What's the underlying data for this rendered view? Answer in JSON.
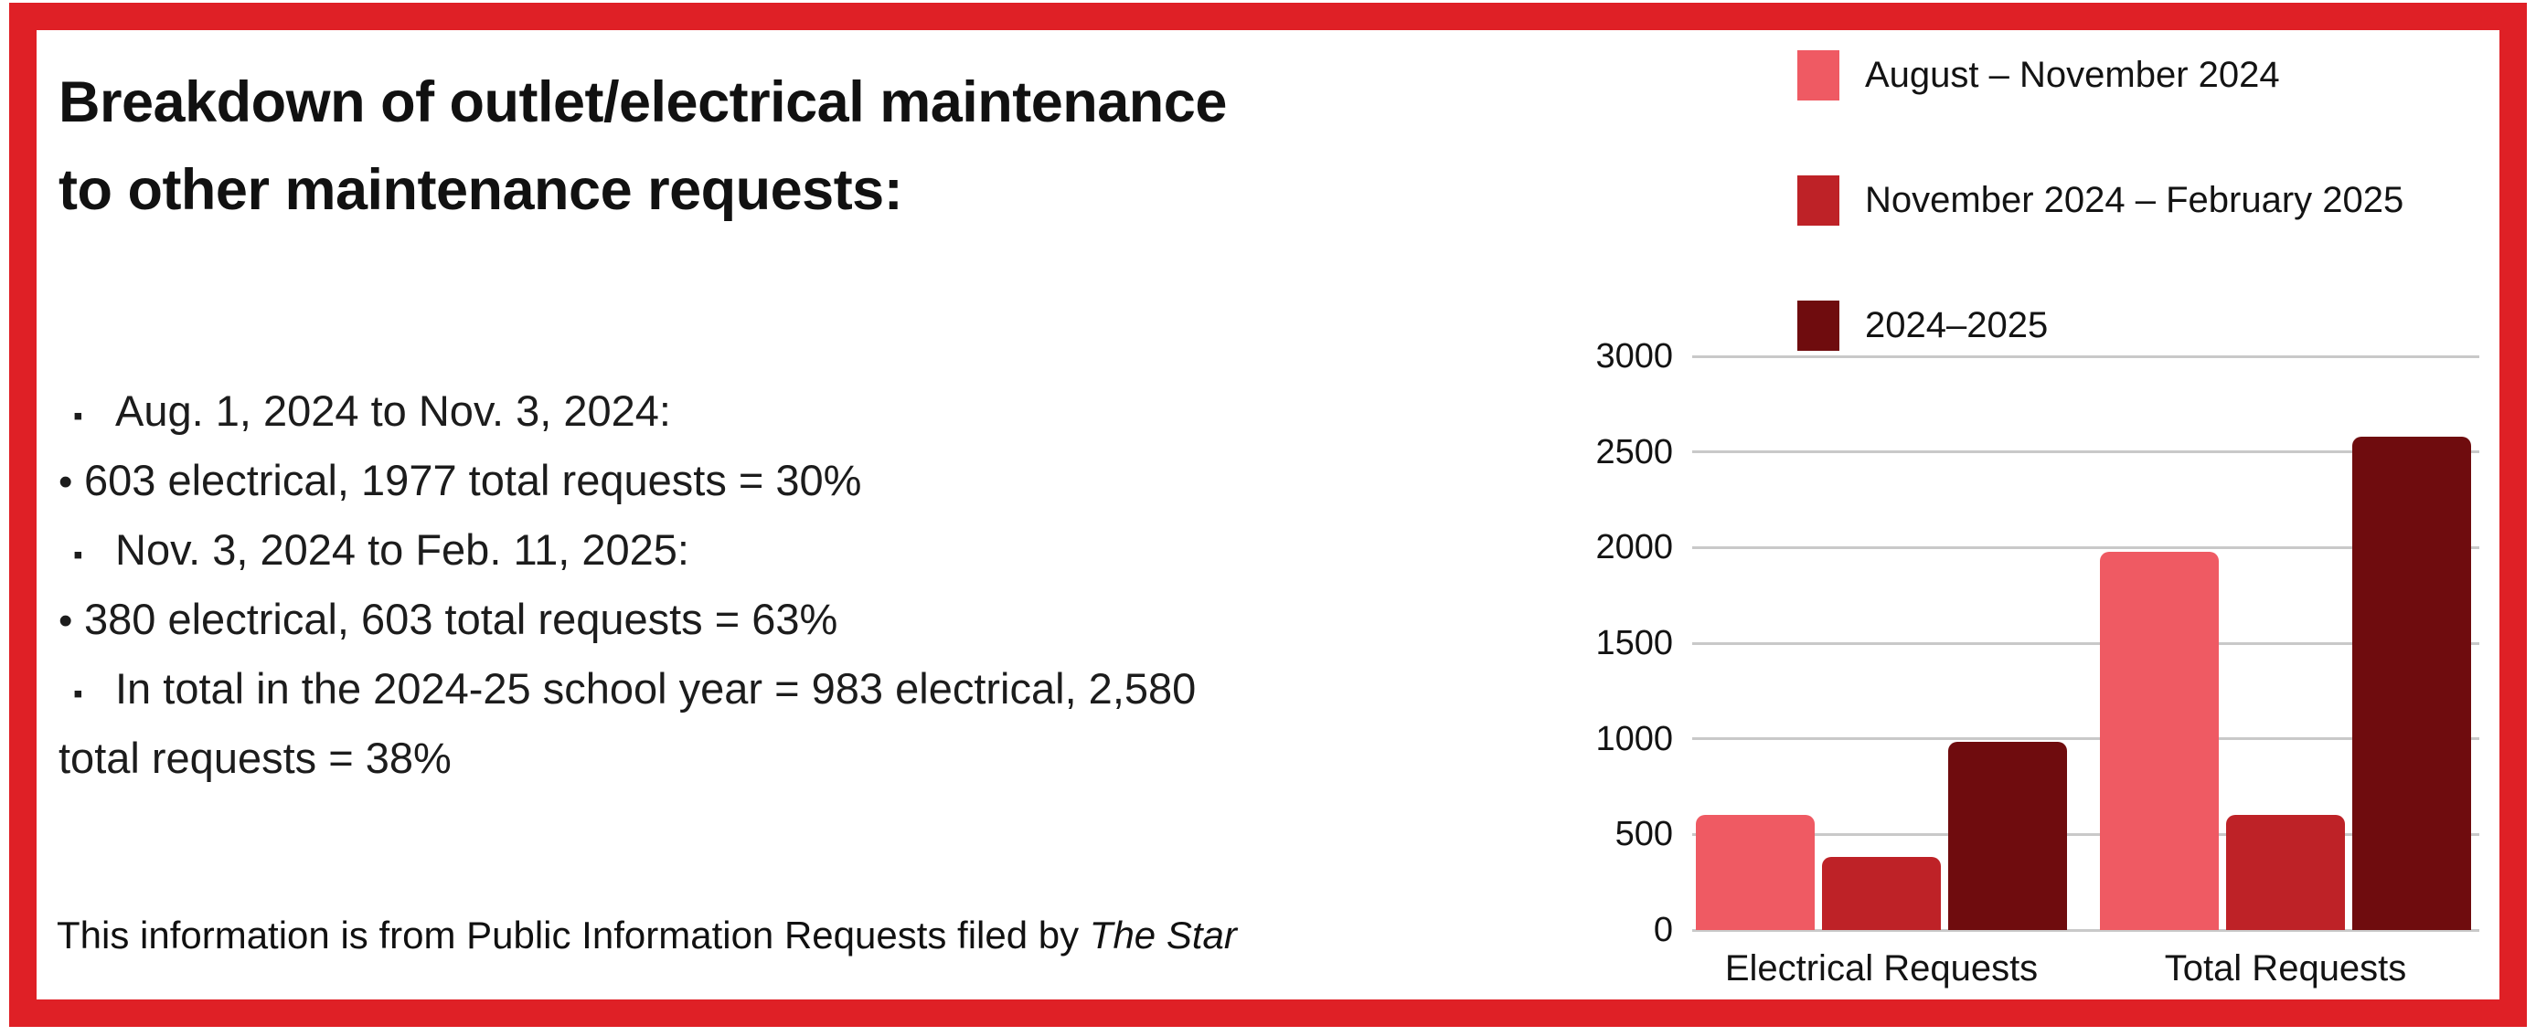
{
  "colors": {
    "border_red": "#DF2026",
    "text": "#131313",
    "gridline": "#c9c9c9"
  },
  "title": {
    "line1": "Breakdown of outlet/electrical maintenance",
    "line2": "to other maintenance requests:"
  },
  "bullets": [
    {
      "marker": "▪",
      "type": "square",
      "text": "Aug. 1, 2024 to Nov. 3, 2024:"
    },
    {
      "marker": "•",
      "type": "dot",
      "text": "603 electrical, 1977 total requests = 30%"
    },
    {
      "marker": "▪",
      "type": "square",
      "text": "Nov. 3, 2024 to Feb. 11, 2025:"
    },
    {
      "marker": "•",
      "type": "dot",
      "text": "380 electrical, 603 total requests = 63%"
    },
    {
      "marker": "▪",
      "type": "square",
      "text": "In total in the 2024-25 school year = 983 electrical, 2,580"
    },
    {
      "marker": "",
      "type": "continuation",
      "text": "total requests = 38%"
    }
  ],
  "footer": {
    "prefix": "This information is from Public Information Requests filed by ",
    "source": "The Star"
  },
  "chart_data": {
    "type": "bar",
    "categories": [
      "Electrical Requests",
      "Total Requests"
    ],
    "series": [
      {
        "name": "August – November 2024",
        "color": "#EF5A63",
        "values": [
          603,
          1977
        ]
      },
      {
        "name": "November 2024 – February 2025",
        "color": "#BE2227",
        "values": [
          380,
          603
        ]
      },
      {
        "name": "2024–2025",
        "color": "#6F0C0E",
        "values": [
          983,
          2580
        ]
      }
    ],
    "title": "",
    "xlabel": "",
    "ylabel": "",
    "ylim": [
      0,
      3000
    ],
    "yticks": [
      0,
      500,
      1000,
      1500,
      2000,
      2500,
      3000
    ],
    "grid": true,
    "legend_position": "top-right"
  }
}
